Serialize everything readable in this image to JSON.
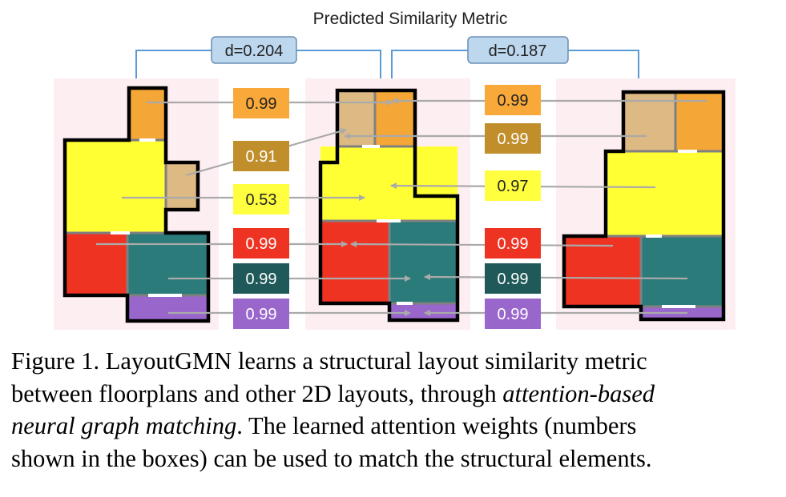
{
  "figure": {
    "title": "Predicted Similarity Metric",
    "distances": {
      "left": "d=0.204",
      "right": "d=0.187"
    },
    "left_pair_weights": [
      {
        "value": "0.99",
        "color": "#F8A93A",
        "text_color": "#222222"
      },
      {
        "value": "0.91",
        "color": "#C18E2C",
        "text_color": "#ffffff"
      },
      {
        "value": "0.53",
        "color": "#FFFF40",
        "text_color": "#222222"
      },
      {
        "value": "0.99",
        "color": "#EE3323",
        "text_color": "#ffffff"
      },
      {
        "value": "0.99",
        "color": "#1F5959",
        "text_color": "#ffffff"
      },
      {
        "value": "0.99",
        "color": "#9966CC",
        "text_color": "#ffffff"
      }
    ],
    "right_pair_weights": [
      {
        "value": "0.99",
        "color": "#F8A93A",
        "text_color": "#222222"
      },
      {
        "value": "0.99",
        "color": "#C18E2C",
        "text_color": "#ffffff"
      },
      {
        "value": "0.97",
        "color": "#FFFF40",
        "text_color": "#222222"
      },
      {
        "value": "0.99",
        "color": "#EE3323",
        "text_color": "#ffffff"
      },
      {
        "value": "0.99",
        "color": "#1F5959",
        "text_color": "#ffffff"
      },
      {
        "value": "0.99",
        "color": "#9966CC",
        "text_color": "#ffffff"
      }
    ],
    "room_colors": {
      "orange": "#F4A637",
      "tan": "#DDB983",
      "yellow": "#FFFF33",
      "red": "#EE3323",
      "teal": "#2A7B7A",
      "purple": "#9966CC",
      "background": "#FDEEF2",
      "arrow": "#AAAAAA",
      "bracket": "#5B9BD5",
      "distance_fill": "#BDD7EE"
    }
  },
  "caption": {
    "line1": "Figure 1. LayoutGMN learns a structural layout similarity metric",
    "line2_plain": "between floorplans and other 2D layouts, through ",
    "line2_italic": "attention-based",
    "line3_italic": "neural graph matching",
    "line3_plain": ".  The learned attention weights (numbers",
    "line4": "shown in the boxes) can be used to match the structural elements."
  }
}
